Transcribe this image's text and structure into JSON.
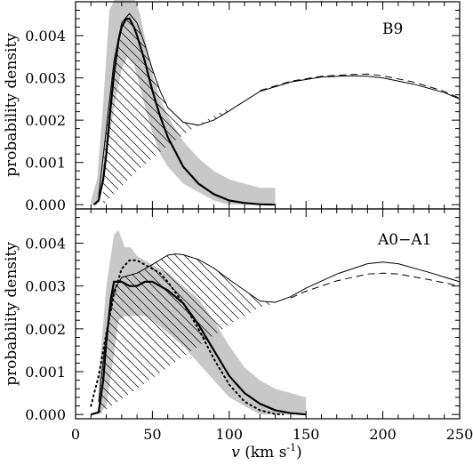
{
  "chart_data": {
    "type": "line",
    "xlabel": "v (km s⁻¹)",
    "xlabel_parts": {
      "symbol": "v",
      "open": " (km s",
      "exp": "-1",
      "close": ")"
    },
    "ylabel": "probability density",
    "xlim": [
      0,
      250
    ],
    "xticks": [
      "0",
      "50",
      "100",
      "150",
      "200",
      "250"
    ],
    "colors": {
      "band": "#c8c8c8",
      "hatch": "#000000",
      "line": "#000000"
    },
    "panels": [
      {
        "id": "B9",
        "label": "B9",
        "ylim": [
          -0.0001,
          0.0048
        ],
        "yticks": [
          "0.000",
          "0.001",
          "0.002",
          "0.003",
          "0.004"
        ],
        "series": [
          {
            "role": "upper_envelope_solid",
            "x": [
              15,
              20,
              25,
              30,
              35,
              40,
              45,
              50,
              55,
              60,
              70,
              80,
              90,
              100,
              110,
              120,
              140,
              160,
              180,
              190,
              200,
              220,
              240,
              250
            ],
            "values": [
              0.0002,
              0.0018,
              0.0034,
              0.0043,
              0.00452,
              0.0043,
              0.0038,
              0.0032,
              0.0027,
              0.0023,
              0.00195,
              0.00188,
              0.002,
              0.00222,
              0.00245,
              0.00268,
              0.0029,
              0.00302,
              0.00305,
              0.00304,
              0.003,
              0.00285,
              0.00265,
              0.0025
            ]
          },
          {
            "role": "upper_envelope_dashed",
            "x": [
              120,
              140,
              160,
              180,
              190,
              200,
              220,
              240,
              250
            ],
            "values": [
              0.0027,
              0.00292,
              0.00304,
              0.00308,
              0.00309,
              0.00305,
              0.0029,
              0.00268,
              0.00252
            ]
          },
          {
            "role": "best_fit_thick",
            "x": [
              12,
              15,
              18,
              20,
              22,
              25,
              28,
              30,
              33,
              35,
              38,
              40,
              45,
              50,
              55,
              60,
              70,
              80,
              90,
              100,
              110,
              120,
              130
            ],
            "values": [
              0,
              0.0001,
              0.0006,
              0.0012,
              0.002,
              0.0031,
              0.0039,
              0.0042,
              0.0044,
              0.0044,
              0.0042,
              0.004,
              0.0034,
              0.0027,
              0.0021,
              0.0016,
              0.0009,
              0.0005,
              0.00025,
              0.0001,
              4e-05,
              1e-05,
              0
            ]
          },
          {
            "role": "hatched_lower_bound",
            "x": [
              18,
              40,
              60,
              80,
              100
            ],
            "values": [
              0,
              0.0008,
              0.0014,
              0.0019,
              0.0023
            ]
          },
          {
            "role": "grey_band_upper",
            "x": [
              10,
              14,
              18,
              22,
              26,
              30,
              34,
              38,
              42,
              46,
              50,
              55,
              60,
              70,
              80,
              90,
              100,
              110,
              120,
              130
            ],
            "values": [
              0.0001,
              0.0006,
              0.0024,
              0.0046,
              0.0049,
              0.0049,
              0.0049,
              0.0049,
              0.0045,
              0.0038,
              0.0031,
              0.0025,
              0.0021,
              0.0015,
              0.0011,
              0.0008,
              0.0006,
              0.0005,
              0.0004,
              0.0004
            ]
          },
          {
            "role": "grey_band_lower",
            "x": [
              10,
              14,
              18,
              22,
              26,
              30,
              34,
              38,
              42,
              46,
              50,
              55,
              60,
              70,
              80,
              90,
              100,
              110,
              120,
              130
            ],
            "values": [
              0,
              0,
              0.0005,
              0.0016,
              0.0025,
              0.0032,
              0.0035,
              0.0033,
              0.0028,
              0.0022,
              0.0017,
              0.0012,
              0.0009,
              0.0005,
              0.0003,
              0.0001,
              0,
              0,
              0,
              0
            ]
          }
        ]
      },
      {
        "id": "A0-A1",
        "label": "A0−A1",
        "ylim": [
          -0.0001,
          0.0048
        ],
        "yticks": [
          "0.000",
          "0.001",
          "0.002",
          "0.003",
          "0.004"
        ],
        "series": [
          {
            "role": "upper_envelope_solid",
            "x": [
              15,
              20,
              25,
              30,
              40,
              50,
              60,
              65,
              70,
              80,
              90,
              100,
              110,
              120,
              130,
              140,
              150,
              170,
              190,
              200,
              210,
              230,
              250
            ],
            "values": [
              0.0003,
              0.0019,
              0.0029,
              0.0032,
              0.0033,
              0.0035,
              0.00372,
              0.00375,
              0.00373,
              0.00362,
              0.00342,
              0.00315,
              0.0029,
              0.00265,
              0.00262,
              0.00275,
              0.00295,
              0.00328,
              0.00352,
              0.00356,
              0.00352,
              0.00332,
              0.0031
            ]
          },
          {
            "role": "upper_envelope_dashed",
            "x": [
              140,
              150,
              170,
              190,
              200,
              210,
              230,
              250
            ],
            "values": [
              0.00272,
              0.00288,
              0.00312,
              0.00328,
              0.0033,
              0.00328,
              0.00315,
              0.003
            ]
          },
          {
            "role": "best_fit_thick",
            "x": [
              10,
              15,
              18,
              20,
              23,
              25,
              30,
              35,
              40,
              45,
              50,
              55,
              60,
              70,
              80,
              90,
              100,
              110,
              120,
              130,
              140,
              150
            ],
            "values": [
              0,
              5e-05,
              0.0008,
              0.0017,
              0.0027,
              0.0031,
              0.0031,
              0.003,
              0.003,
              0.0031,
              0.0031,
              0.003,
              0.0029,
              0.0026,
              0.0021,
              0.0015,
              0.0009,
              0.0005,
              0.00025,
              0.0001,
              3e-05,
              0
            ]
          },
          {
            "role": "dotted",
            "x": [
              10,
              15,
              20,
              25,
              30,
              35,
              40,
              45,
              50,
              55,
              60,
              70,
              80,
              90,
              100,
              110,
              120,
              130,
              135
            ],
            "values": [
              0.0002,
              0.0009,
              0.0019,
              0.0028,
              0.0034,
              0.0036,
              0.0036,
              0.0035,
              0.0034,
              0.0033,
              0.0031,
              0.0026,
              0.002,
              0.0013,
              0.0007,
              0.0003,
              0.0001,
              1e-05,
              0
            ]
          },
          {
            "role": "hatched_lower_bound",
            "x": [
              15,
              40,
              60,
              80,
              100,
              120,
              130
            ],
            "values": [
              0,
              0.0006,
              0.0011,
              0.0016,
              0.0021,
              0.0025,
              0.0026
            ]
          },
          {
            "role": "grey_band_upper",
            "x": [
              15,
              20,
              25,
              28,
              32,
              36,
              40,
              45,
              50,
              60,
              70,
              80,
              90,
              100,
              110,
              120,
              130,
              140,
              150
            ],
            "values": [
              0.0008,
              0.003,
              0.0042,
              0.0043,
              0.0039,
              0.0039,
              0.0037,
              0.0036,
              0.0035,
              0.0033,
              0.003,
              0.0027,
              0.0022,
              0.0016,
              0.0011,
              0.0008,
              0.0006,
              0.0005,
              0.0004
            ]
          },
          {
            "role": "grey_band_lower",
            "x": [
              15,
              20,
              25,
              28,
              32,
              36,
              40,
              45,
              50,
              60,
              70,
              80,
              90,
              100,
              110,
              120,
              130,
              140,
              150
            ],
            "values": [
              0,
              0.0002,
              0.0014,
              0.0022,
              0.0023,
              0.0023,
              0.0023,
              0.0023,
              0.0022,
              0.0019,
              0.0016,
              0.0012,
              0.0008,
              0.0004,
              0.0002,
              0,
              0,
              0,
              0
            ]
          }
        ]
      }
    ]
  }
}
